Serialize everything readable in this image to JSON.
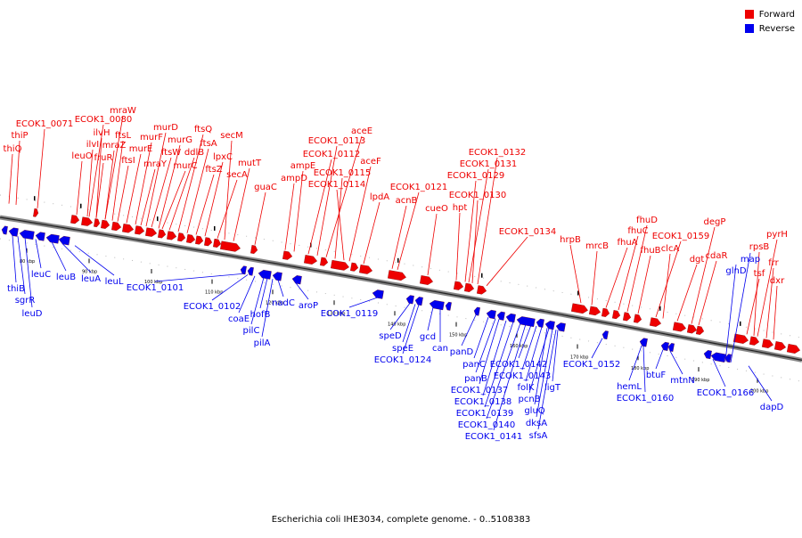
{
  "title": "Escherichia coli IHE3034, complete genome. - 0..5108383",
  "legend": [
    {
      "label": "Forward",
      "color": "#ee0000"
    },
    {
      "label": "Reverse",
      "color": "#0000ee"
    }
  ],
  "axis_labels": [
    "80 kbp",
    "90 kbp",
    "100 kbp",
    "110 kbp",
    "120 kbp",
    "130 kbp",
    "140 kbp",
    "150 kbp",
    "160 kbp",
    "170 kbp",
    "180 kbp",
    "190 kbp",
    "200 kbp"
  ],
  "forward_genes": [
    "ECOK1_0071",
    "thiP",
    "thiQ",
    "ECOK1_0080",
    "mraW",
    "ilvH",
    "ilvI",
    "leuO",
    "fruR",
    "mraZ",
    "ftsL",
    "ftsI",
    "murE",
    "murF",
    "murD",
    "mraY",
    "murG",
    "ftsW",
    "ddlB",
    "murC",
    "ftsQ",
    "ftsA",
    "ftsZ",
    "lpxC",
    "secA",
    "secM",
    "mutT",
    "guaC",
    "ampD",
    "ampE",
    "ECOK1_0112",
    "ECOK1_0113",
    "aceE",
    "ECOK1_0115",
    "aceF",
    "ECOK1_0114",
    "lpdA",
    "ECOK1_0121",
    "acnB",
    "cueO",
    "hpt",
    "ECOK1_0129",
    "ECOK1_0130",
    "ECOK1_0131",
    "ECOK1_0132",
    "ECOK1_0134",
    "hrpB",
    "mrcB",
    "fhuA",
    "fhuD",
    "fhuC",
    "fhuB",
    "ECOK1_0159",
    "clcA",
    "dgt",
    "degP",
    "cdaR",
    "pyrH",
    "rpsB",
    "tsf",
    "frr",
    "dxr"
  ],
  "reverse_genes": [
    "thiB",
    "sgrR",
    "leuD",
    "leuC",
    "leuB",
    "leuA",
    "leuL",
    "ECOK1_0101",
    "ECOK1_0102",
    "coaE",
    "pilC",
    "hofB",
    "pilA",
    "nadC",
    "aroP",
    "ECOK1_0119",
    "speD",
    "speE",
    "ECOK1_0124",
    "gcd",
    "can",
    "panD",
    "panC",
    "panB",
    "ECOK1_0137",
    "ECOK1_0138",
    "ECOK1_0139",
    "ECOK1_0140",
    "ECOK1_0141",
    "ECOK1_0142",
    "ECOK1_0143",
    "folK",
    "pcnB",
    "ligT",
    "gluQ",
    "dksA",
    "sfsA",
    "ECOK1_0152",
    "hemL",
    "ECOK1_0160",
    "btuF",
    "mtnN",
    "ECOK1_0166",
    "glnD",
    "map",
    "dapD"
  ]
}
